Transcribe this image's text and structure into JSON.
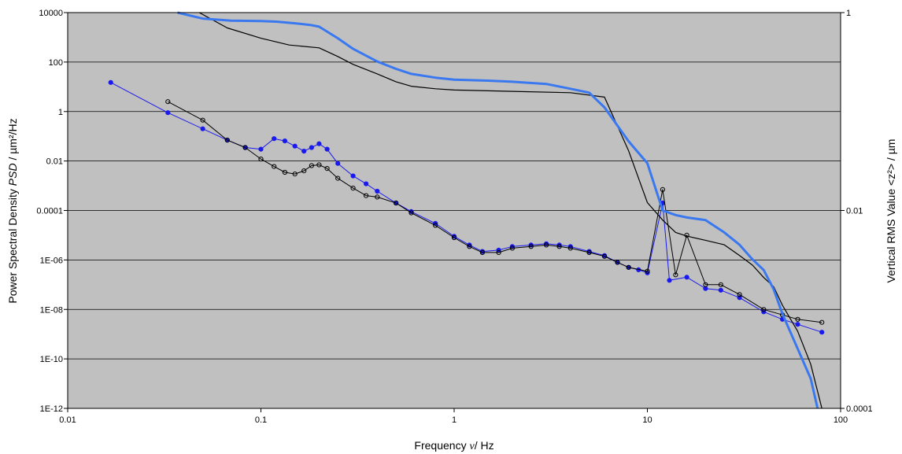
{
  "chart_data": {
    "type": "line",
    "x_scale": "log",
    "y_scale": "log",
    "y2_scale": "log",
    "xlim": [
      0.01,
      100
    ],
    "ylim": [
      1e-12,
      10000
    ],
    "y2lim": [
      0.0001,
      1
    ],
    "grid": "horizontal major gridlines",
    "legend": "none",
    "plot_background": "#c0c0c0",
    "xlabel": {
      "prefix": "Frequency ",
      "symbol": "ν",
      "suffix": "/ Hz"
    },
    "ylabel": {
      "prefix": "Power Spectral Density  ",
      "symbol": "PSD",
      "suffix": " / µm²/Hz"
    },
    "y2label": "Vertical RMS Value  <z²> / µm",
    "x_ticks": [
      "0.01",
      "0.1",
      "1",
      "10",
      "100"
    ],
    "y_ticks": [
      "1E-12",
      "1E-10",
      "1E-08",
      "1E-06",
      "0.0001",
      "0.01",
      "1",
      "100",
      "10000"
    ],
    "y2_ticks": [
      "0.0001",
      "0.01",
      "1"
    ],
    "series": [
      {
        "axis": "left",
        "color": "#1a1aee",
        "stroke_width": 1,
        "marker": "filled-circle",
        "points": [
          [
            0.0167,
            15
          ],
          [
            0.033,
            0.9
          ],
          [
            0.05,
            0.2
          ],
          [
            0.067,
            0.07
          ],
          [
            0.083,
            0.035
          ],
          [
            0.1,
            0.03
          ],
          [
            0.117,
            0.08
          ],
          [
            0.133,
            0.065
          ],
          [
            0.15,
            0.04
          ],
          [
            0.167,
            0.025
          ],
          [
            0.183,
            0.035
          ],
          [
            0.2,
            0.05
          ],
          [
            0.22,
            0.03
          ],
          [
            0.25,
            0.008
          ],
          [
            0.3,
            0.0025
          ],
          [
            0.35,
            0.0012
          ],
          [
            0.4,
            0.0006
          ],
          [
            0.5,
            0.0002
          ],
          [
            0.6,
            9e-05
          ],
          [
            0.8,
            3e-05
          ],
          [
            1.0,
            9e-06
          ],
          [
            1.2,
            4e-06
          ],
          [
            1.4,
            2.2e-06
          ],
          [
            1.7,
            2.5e-06
          ],
          [
            2.0,
            3.5e-06
          ],
          [
            2.5,
            4e-06
          ],
          [
            3.0,
            4.5e-06
          ],
          [
            3.5,
            4e-06
          ],
          [
            4.0,
            3.5e-06
          ],
          [
            5.0,
            2.2e-06
          ],
          [
            6.0,
            1.5e-06
          ],
          [
            7.0,
            8e-07
          ],
          [
            8.0,
            5e-07
          ],
          [
            9.0,
            4e-07
          ],
          [
            10,
            3e-07
          ],
          [
            12,
            0.0002
          ],
          [
            13,
            1.5e-07
          ],
          [
            16,
            2e-07
          ],
          [
            20,
            7e-08
          ],
          [
            24,
            6e-08
          ],
          [
            30,
            3e-08
          ],
          [
            40,
            8e-09
          ],
          [
            50,
            4e-09
          ],
          [
            60,
            2.5e-09
          ],
          [
            80,
            1.2e-09
          ]
        ]
      },
      {
        "axis": "left",
        "color": "#000000",
        "stroke_width": 1,
        "marker": "open-circle",
        "points": [
          [
            0.033,
            2.5
          ],
          [
            0.05,
            0.45
          ],
          [
            0.067,
            0.07
          ],
          [
            0.083,
            0.035
          ],
          [
            0.1,
            0.012
          ],
          [
            0.117,
            0.006
          ],
          [
            0.133,
            0.0035
          ],
          [
            0.15,
            0.003
          ],
          [
            0.167,
            0.004
          ],
          [
            0.183,
            0.0065
          ],
          [
            0.2,
            0.007
          ],
          [
            0.22,
            0.005
          ],
          [
            0.25,
            0.002
          ],
          [
            0.3,
            0.0008
          ],
          [
            0.35,
            0.0004
          ],
          [
            0.4,
            0.00035
          ],
          [
            0.5,
            0.0002
          ],
          [
            0.6,
            8e-05
          ],
          [
            0.8,
            2.5e-05
          ],
          [
            1.0,
            8e-06
          ],
          [
            1.2,
            3.5e-06
          ],
          [
            1.4,
            2e-06
          ],
          [
            1.7,
            2e-06
          ],
          [
            2.0,
            3e-06
          ],
          [
            2.5,
            3.5e-06
          ],
          [
            3.0,
            4e-06
          ],
          [
            3.5,
            3.5e-06
          ],
          [
            4.0,
            3e-06
          ],
          [
            5.0,
            2e-06
          ],
          [
            6.0,
            1.4e-06
          ],
          [
            7.0,
            8e-07
          ],
          [
            8.0,
            5e-07
          ],
          [
            10,
            3.5e-07
          ],
          [
            12,
            0.0007
          ],
          [
            14,
            2.5e-07
          ],
          [
            16,
            1e-05
          ],
          [
            20,
            1e-07
          ],
          [
            24,
            1e-07
          ],
          [
            30,
            4e-08
          ],
          [
            40,
            1e-08
          ],
          [
            50,
            6e-09
          ],
          [
            60,
            4e-09
          ],
          [
            80,
            3e-09
          ]
        ]
      },
      {
        "axis": "right",
        "color": "#000000",
        "stroke_width": 1.2,
        "marker": "none",
        "points": [
          [
            0.048,
            1.0
          ],
          [
            0.067,
            0.7
          ],
          [
            0.1,
            0.55
          ],
          [
            0.14,
            0.47
          ],
          [
            0.2,
            0.44
          ],
          [
            0.25,
            0.36
          ],
          [
            0.3,
            0.3
          ],
          [
            0.4,
            0.24
          ],
          [
            0.5,
            0.2
          ],
          [
            0.6,
            0.18
          ],
          [
            0.8,
            0.17
          ],
          [
            1,
            0.165
          ],
          [
            2,
            0.16
          ],
          [
            4,
            0.155
          ],
          [
            6,
            0.14
          ],
          [
            8,
            0.04
          ],
          [
            10,
            0.012
          ],
          [
            12,
            0.008
          ],
          [
            14,
            0.006
          ],
          [
            16,
            0.0055
          ],
          [
            20,
            0.005
          ],
          [
            25,
            0.0045
          ],
          [
            30,
            0.0035
          ],
          [
            35,
            0.0028
          ],
          [
            40,
            0.0021
          ],
          [
            45,
            0.0017
          ],
          [
            50,
            0.0011
          ],
          [
            60,
            0.0006
          ],
          [
            70,
            0.00028
          ],
          [
            80,
            0.0001
          ]
        ]
      },
      {
        "axis": "right",
        "color": "#3a78f0",
        "stroke_width": 3,
        "marker": "none",
        "points": [
          [
            0.037,
            1.0
          ],
          [
            0.05,
            0.87
          ],
          [
            0.07,
            0.83
          ],
          [
            0.1,
            0.82
          ],
          [
            0.12,
            0.81
          ],
          [
            0.15,
            0.78
          ],
          [
            0.18,
            0.75
          ],
          [
            0.2,
            0.72
          ],
          [
            0.25,
            0.55
          ],
          [
            0.3,
            0.43
          ],
          [
            0.4,
            0.32
          ],
          [
            0.5,
            0.27
          ],
          [
            0.6,
            0.24
          ],
          [
            0.8,
            0.22
          ],
          [
            1,
            0.21
          ],
          [
            1.5,
            0.205
          ],
          [
            2,
            0.2
          ],
          [
            3,
            0.19
          ],
          [
            4,
            0.17
          ],
          [
            5,
            0.155
          ],
          [
            6,
            0.11
          ],
          [
            8,
            0.05
          ],
          [
            10,
            0.03
          ],
          [
            12,
            0.01
          ],
          [
            14,
            0.009
          ],
          [
            16,
            0.0085
          ],
          [
            20,
            0.008
          ],
          [
            25,
            0.006
          ],
          [
            30,
            0.0045
          ],
          [
            35,
            0.0032
          ],
          [
            40,
            0.0025
          ],
          [
            45,
            0.0016
          ],
          [
            50,
            0.0009
          ],
          [
            60,
            0.0004
          ],
          [
            70,
            0.0002
          ],
          [
            76,
            0.0001
          ]
        ]
      }
    ]
  }
}
